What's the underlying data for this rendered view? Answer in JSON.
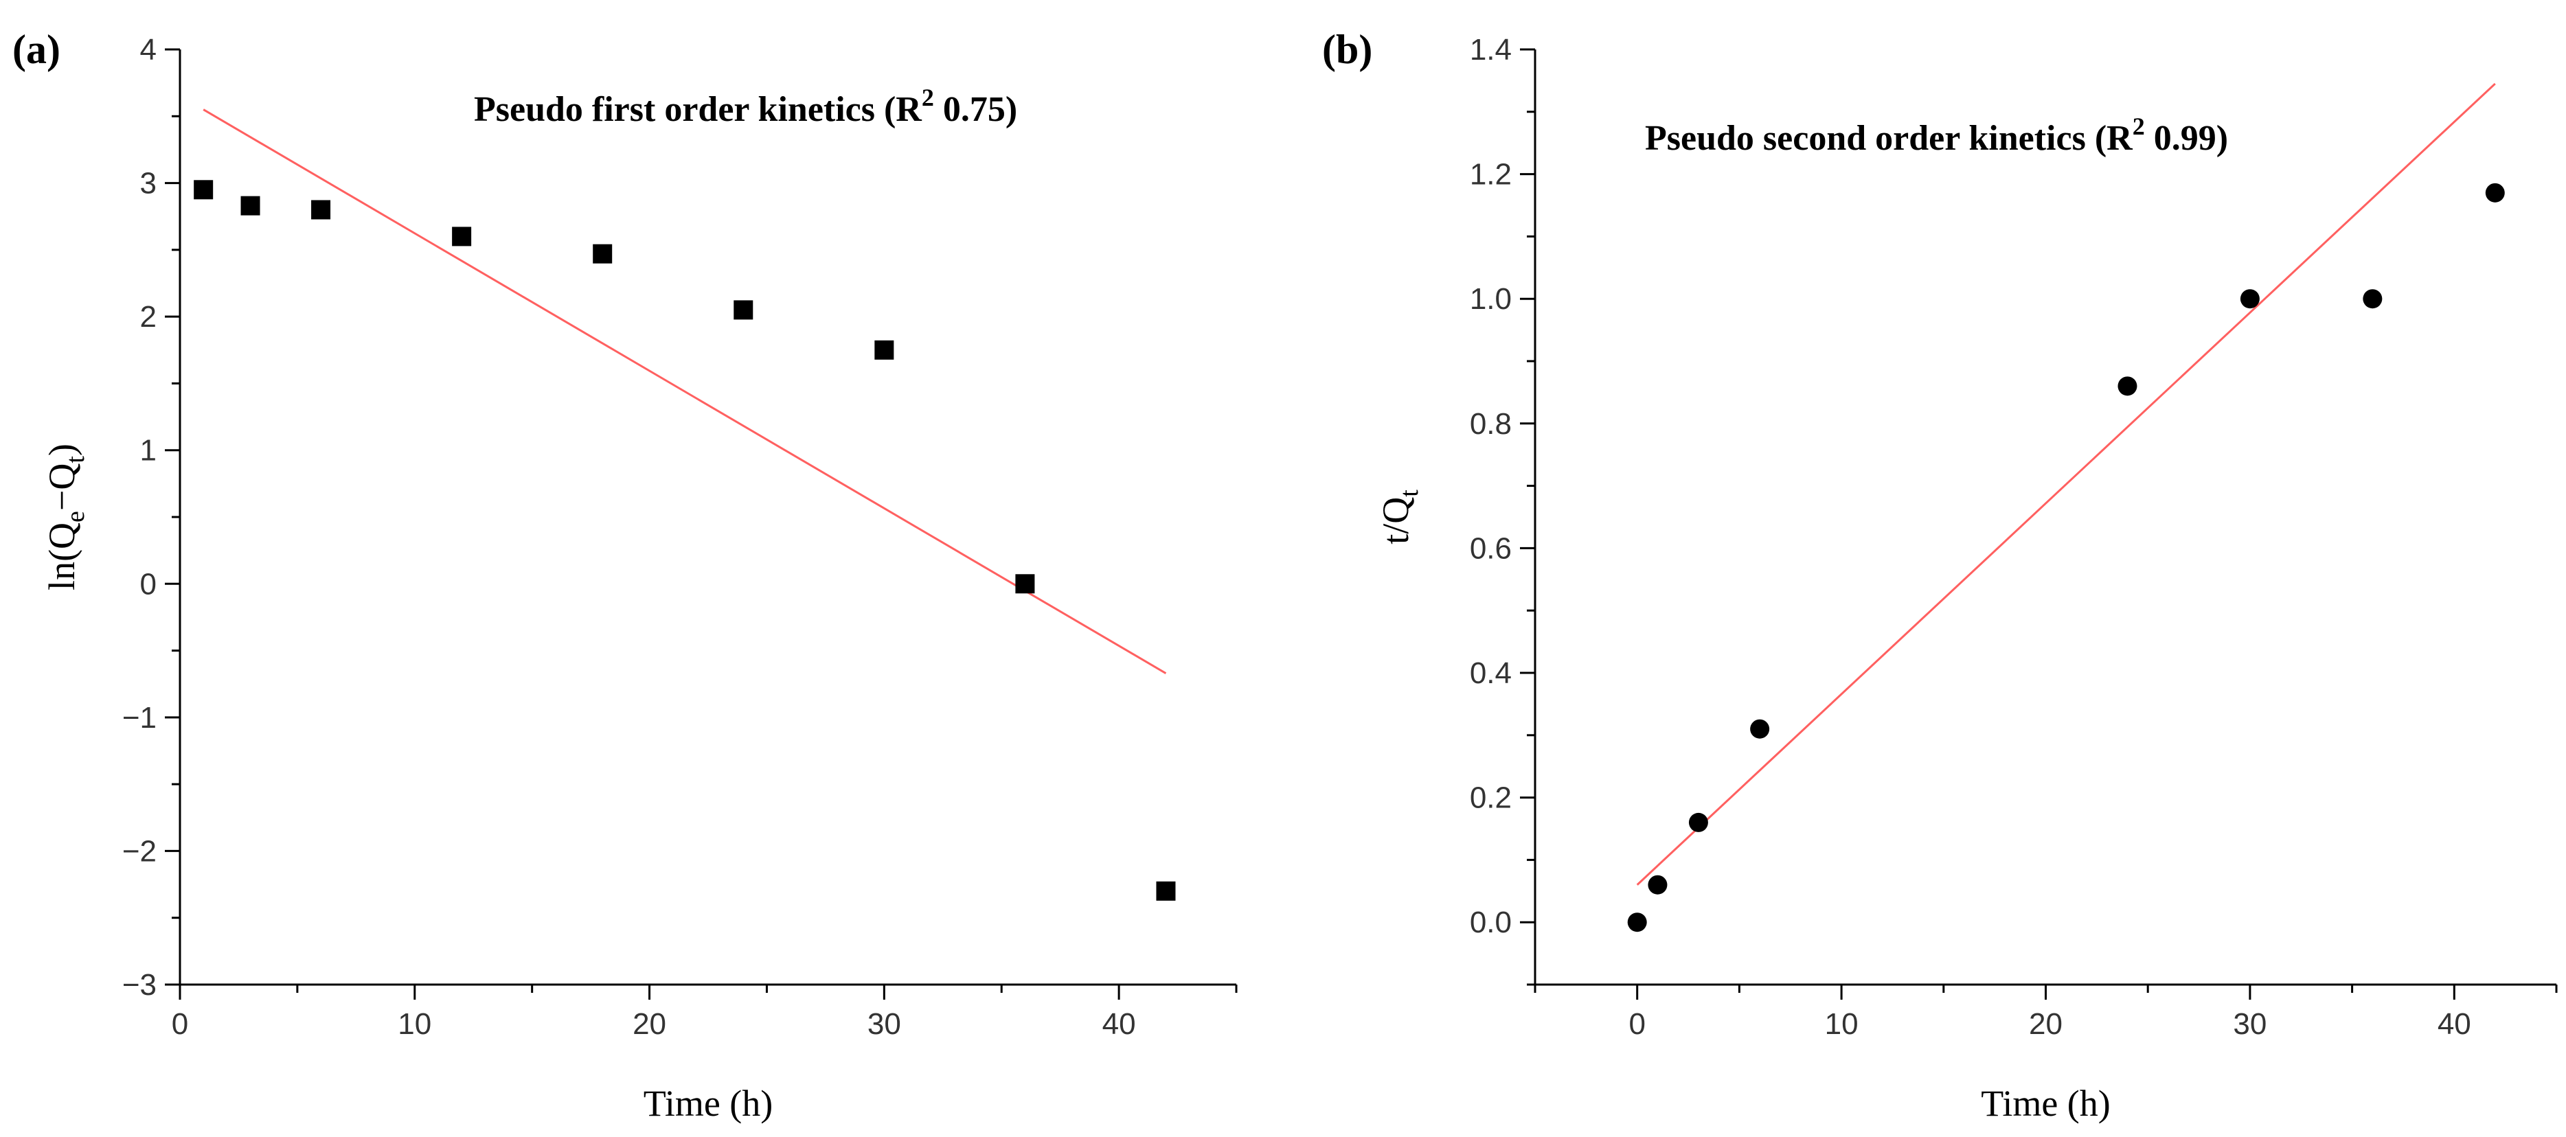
{
  "chart_data": [
    {
      "panel_label": "(a)",
      "type": "scatter",
      "title": "Pseudo first order kinetics (R",
      "title_sup": "2",
      "title_tail": " 0.75)",
      "xlabel": "Time (h)",
      "ylabel_parts": [
        "ln(Q",
        "e",
        "−Q",
        "t",
        ")"
      ],
      "xlim": [
        0,
        45
      ],
      "ylim": [
        -3,
        4
      ],
      "xticks": [
        0,
        10,
        20,
        30,
        40
      ],
      "xtick_labels": [
        "0",
        "10",
        "20",
        "30",
        "40"
      ],
      "yticks": [
        -3,
        -2,
        -1,
        0,
        1,
        2,
        3,
        4
      ],
      "ytick_labels": [
        "−3",
        "−2",
        "−1",
        "0",
        "1",
        "2",
        "3",
        "4"
      ],
      "marker": "square",
      "points": [
        {
          "x": 1,
          "y": 2.95
        },
        {
          "x": 3,
          "y": 2.83
        },
        {
          "x": 6,
          "y": 2.8
        },
        {
          "x": 12,
          "y": 2.6
        },
        {
          "x": 18,
          "y": 2.47
        },
        {
          "x": 24,
          "y": 2.05
        },
        {
          "x": 30,
          "y": 1.75
        },
        {
          "x": 36,
          "y": 0.0
        },
        {
          "x": 42,
          "y": -2.3
        }
      ],
      "fit_line": {
        "x": [
          1,
          42
        ],
        "y": [
          3.55,
          -0.67
        ],
        "color": "#ff6060"
      }
    },
    {
      "panel_label": "(b)",
      "type": "scatter",
      "title": "Pseudo second order kinetics (R",
      "title_sup": "2",
      "title_tail": " 0.99)",
      "xlabel": "Time (h)",
      "ylabel_parts": [
        "t/Q",
        "t"
      ],
      "xlim": [
        -5,
        45
      ],
      "ylim": [
        -0.1,
        1.4
      ],
      "xticks": [
        0,
        10,
        20,
        30,
        40
      ],
      "xtick_labels": [
        "0",
        "10",
        "20",
        "30",
        "40"
      ],
      "yticks": [
        0.0,
        0.2,
        0.4,
        0.6,
        0.8,
        1.0,
        1.2,
        1.4
      ],
      "ytick_labels": [
        "0.0",
        "0.2",
        "0.4",
        "0.6",
        "0.8",
        "1.0",
        "1.2",
        "1.4"
      ],
      "marker": "circle",
      "points": [
        {
          "x": 0,
          "y": 0.0
        },
        {
          "x": 1,
          "y": 0.06
        },
        {
          "x": 3,
          "y": 0.16
        },
        {
          "x": 6,
          "y": 0.31
        },
        {
          "x": 24,
          "y": 0.86
        },
        {
          "x": 30,
          "y": 1.0
        },
        {
          "x": 36,
          "y": 1.0
        },
        {
          "x": 42,
          "y": 1.17
        }
      ],
      "fit_line": {
        "x": [
          0,
          42
        ],
        "y": [
          0.06,
          1.345
        ],
        "color": "#ff6060"
      }
    }
  ]
}
